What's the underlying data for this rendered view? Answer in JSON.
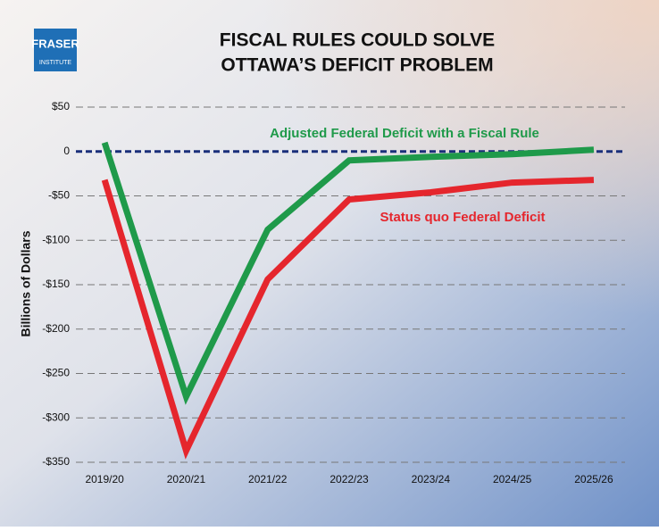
{
  "logo": {
    "name": "FRASER",
    "sub": "INSTITUTE"
  },
  "chart_data": {
    "type": "line",
    "title": [
      "FISCAL RULES COULD SOLVE",
      "OTTAWA’S DEFICIT PROBLEM"
    ],
    "y_label": "Billions of Dollars",
    "categories": [
      "2019/20",
      "2020/21",
      "2021/22",
      "2022/23",
      "2023/24",
      "2024/25",
      "2025/26"
    ],
    "series": [
      {
        "name": "Adjusted Federal Deficit with a Fiscal Rule",
        "color": "#1f9a4a",
        "values": [
          10,
          -276,
          -88,
          -10,
          -6,
          -3,
          2
        ]
      },
      {
        "name": "Status quo Federal Deficit",
        "color": "#e5262d",
        "values": [
          -32,
          -337,
          -144,
          -54,
          -46,
          -35,
          -32
        ]
      }
    ],
    "ylim": [
      -350,
      50
    ],
    "yticks": [
      {
        "value": -350,
        "label": "-$350"
      },
      {
        "value": -300,
        "label": "-$300"
      },
      {
        "value": -250,
        "label": "-$250"
      },
      {
        "value": -200,
        "label": "-$200"
      },
      {
        "value": -150,
        "label": "-$150"
      },
      {
        "value": -100,
        "label": "-$100"
      },
      {
        "value": -50,
        "label": "-$50"
      },
      0,
      {
        "value": 50,
        "label": "$50"
      }
    ],
    "grid": true
  }
}
